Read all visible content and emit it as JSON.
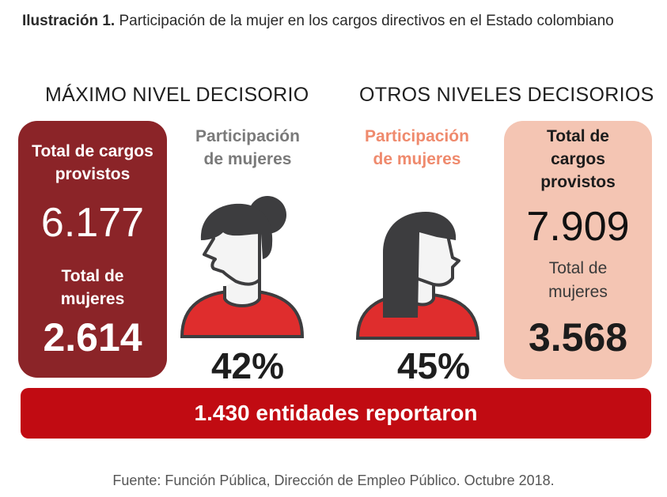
{
  "caption": {
    "label": "Ilustración 1.",
    "text": " Participación de la mujer en los cargos directivos en el Estado colombiano"
  },
  "sections": {
    "left_title": "MÁXIMO NIVEL DECISORIO",
    "right_title": "OTROS NIVELES DECISORIOS"
  },
  "max_level": {
    "total_label_1": "Total de cargos",
    "total_label_2": "provistos",
    "total_value": "6.177",
    "women_label_1": "Total de",
    "women_label_2": "mujeres",
    "women_value": "2.614",
    "participation_label_1": "Participación",
    "participation_label_2": "de mujeres",
    "participation_pct": "42%"
  },
  "other_levels": {
    "total_label_1": "Total de",
    "total_label_2": "cargos",
    "total_label_3": "provistos",
    "total_value": "7.909",
    "women_label_1": "Total de",
    "women_label_2": "mujeres",
    "women_value": "3.568",
    "participation_label_1": "Participación",
    "participation_label_2": "de mujeres",
    "participation_pct": "45%"
  },
  "banner": {
    "text": "1.430 entidades reportaron"
  },
  "source": "Fuente: Función Pública, Dirección de Empleo Público. Octubre 2018.",
  "colors": {
    "dark_red": "#8b2428",
    "bright_red": "#c10b12",
    "salmon": "#f4c5b3",
    "salmon_text": "#ef8a6d",
    "gray_text": "#7a7a7a",
    "hair": "#3d3d3f",
    "shirt": "#df2d2d"
  },
  "icons": {
    "left_figure": "woman-bun-icon",
    "right_figure": "woman-long-hair-icon"
  }
}
